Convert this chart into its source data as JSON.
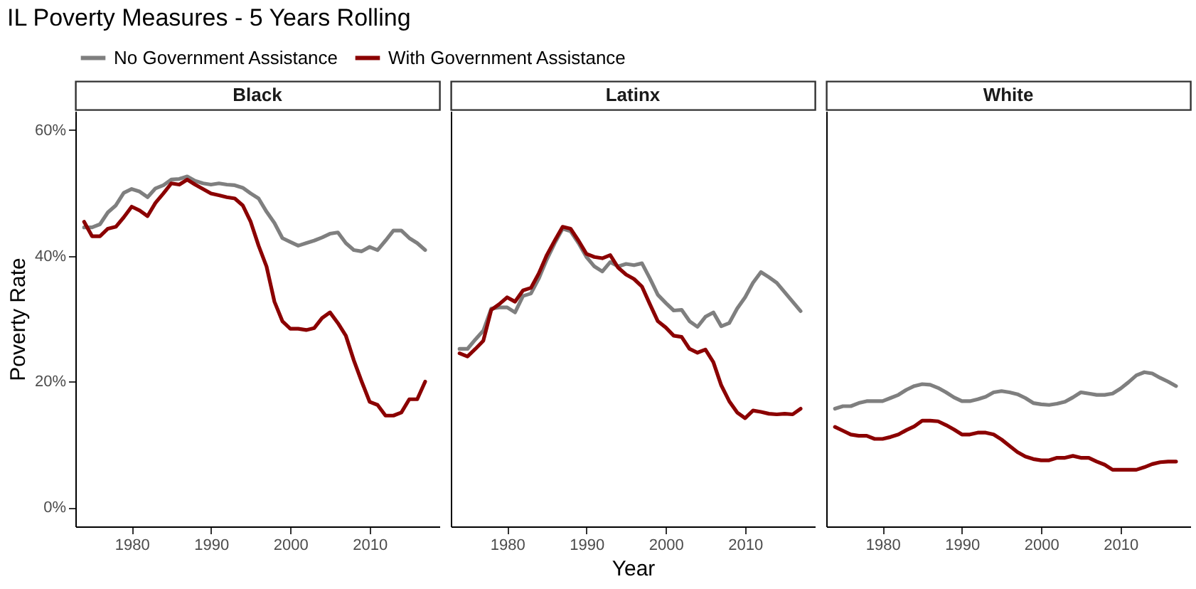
{
  "chart_data": [
    {
      "type": "line",
      "title": "IL Poverty Measures - 5 Years Rolling",
      "subtitle": "Black",
      "ylabel": "Poverty Rate",
      "legend": "top",
      "grid": false,
      "line_style": "solid",
      "marker": "none",
      "x": [
        1974,
        1975,
        1976,
        1977,
        1978,
        1979,
        1980,
        1981,
        1982,
        1983,
        1984,
        1985,
        1986,
        1987,
        1988,
        1989,
        1990,
        1991,
        1992,
        1993,
        1994,
        1995,
        1996,
        1997,
        1998,
        1999,
        2000,
        2001,
        2002,
        2003,
        2004,
        2005,
        2006,
        2007,
        2008,
        2009,
        2010,
        2011,
        2012,
        2013,
        2014,
        2015,
        2016,
        2017
      ],
      "xlim": [
        1972.9,
        2018.8
      ],
      "xticks": [
        1980,
        1990,
        2000,
        2010
      ],
      "ylim": [
        -3,
        63
      ],
      "yticks": [
        {
          "value": 0,
          "label": "0%"
        },
        {
          "value": 20,
          "label": "20%"
        },
        {
          "value": 40,
          "label": "40%"
        },
        {
          "value": 60,
          "label": "60%"
        }
      ],
      "series": [
        {
          "name": "No Government Assistance",
          "color": "#7f7f7f",
          "values": [
            44.5,
            44.5,
            45,
            46.9,
            48,
            50,
            50.6,
            50.2,
            49.3,
            50.7,
            51.2,
            52.1,
            52.2,
            52.6,
            51.9,
            51.5,
            51.3,
            51.5,
            51.3,
            51.2,
            50.8,
            49.9,
            49.1,
            47,
            45.2,
            42.8,
            42.2,
            41.6,
            42,
            42.4,
            42.9,
            43.5,
            43.7,
            42,
            40.9,
            40.7,
            41.4,
            40.9,
            42.4,
            44,
            44,
            42.8,
            42,
            40.9
          ]
        },
        {
          "name": "With Government Assistance",
          "color": "#8b0000",
          "values": [
            45.4,
            43.1,
            43.1,
            44.3,
            44.6,
            46.1,
            47.8,
            47.2,
            46.3,
            48.4,
            49.9,
            51.5,
            51.3,
            52.1,
            51.3,
            50.6,
            49.9,
            49.6,
            49.3,
            49.1,
            48,
            45.4,
            41.6,
            38.3,
            32.7,
            29.6,
            28.4,
            28.4,
            28.2,
            28.5,
            30.1,
            31,
            29.3,
            27.3,
            23.4,
            20,
            16.8,
            16.3,
            14.6,
            14.6,
            15.1,
            17.2,
            17.2,
            20
          ]
        }
      ]
    },
    {
      "type": "line",
      "subtitle": "Latinx",
      "xlabel": "Year",
      "tick_labels": "x",
      "grid": false,
      "line_style": "solid",
      "marker": "none",
      "ylim": [
        -3,
        63
      ],
      "x": [
        1974,
        1975,
        1976,
        1977,
        1978,
        1979,
        1980,
        1981,
        1982,
        1983,
        1984,
        1985,
        1986,
        1987,
        1988,
        1989,
        1990,
        1991,
        1992,
        1993,
        1994,
        1995,
        1996,
        1997,
        1998,
        1999,
        2000,
        2001,
        2002,
        2003,
        2004,
        2005,
        2006,
        2007,
        2008,
        2009,
        2010,
        2011,
        2012,
        2013,
        2014,
        2015,
        2016,
        2017
      ],
      "xlim": [
        1972.9,
        2018.8
      ],
      "xticks": [
        1980,
        1990,
        2000,
        2010
      ],
      "series": [
        {
          "color": "#7f7f7f",
          "values": [
            25.2,
            25.2,
            26.7,
            28.1,
            31.6,
            31.8,
            31.8,
            31,
            33.6,
            34,
            36.4,
            39.4,
            42,
            44.3,
            43.9,
            42,
            39.8,
            38.3,
            37.5,
            39,
            38.3,
            38.7,
            38.5,
            38.8,
            36.4,
            33.8,
            32.5,
            31.3,
            31.4,
            29.6,
            28.7,
            30.3,
            31,
            28.8,
            29.3,
            31.6,
            33.4,
            35.7,
            37.4,
            36.6,
            35.7,
            34.2,
            32.7,
            31.2
          ]
        },
        {
          "color": "#8b0000",
          "values": [
            24.5,
            24,
            25.2,
            26.5,
            31.4,
            32.3,
            33.4,
            32.7,
            34.5,
            34.9,
            37.2,
            40.1,
            42.4,
            44.6,
            44.3,
            42.4,
            40.3,
            39.8,
            39.6,
            40.1,
            38.1,
            37,
            36.3,
            35.1,
            32.3,
            29.6,
            28.6,
            27.3,
            27.1,
            25.2,
            24.6,
            25.1,
            23.1,
            19.4,
            16.9,
            15.1,
            14.2,
            15.4,
            15.2,
            14.9,
            14.8,
            14.9,
            14.8,
            15.7
          ]
        }
      ]
    },
    {
      "type": "line",
      "subtitle": "White",
      "tick_labels": "x",
      "grid": false,
      "line_style": "solid",
      "marker": "none",
      "ylim": [
        -3,
        63
      ],
      "x": [
        1974,
        1975,
        1976,
        1977,
        1978,
        1979,
        1980,
        1981,
        1982,
        1983,
        1984,
        1985,
        1986,
        1987,
        1988,
        1989,
        1990,
        1991,
        1992,
        1993,
        1994,
        1995,
        1996,
        1997,
        1998,
        1999,
        2000,
        2001,
        2002,
        2003,
        2004,
        2005,
        2006,
        2007,
        2008,
        2009,
        2010,
        2011,
        2012,
        2013,
        2014,
        2015,
        2016,
        2017
      ],
      "xlim": [
        1972.9,
        2018.8
      ],
      "xticks": [
        1980,
        1990,
        2000,
        2010
      ],
      "series": [
        {
          "color": "#7f7f7f",
          "values": [
            15.7,
            16.1,
            16.1,
            16.6,
            16.9,
            16.9,
            16.9,
            17.4,
            17.9,
            18.7,
            19.3,
            19.6,
            19.5,
            19,
            18.3,
            17.5,
            16.9,
            16.9,
            17.2,
            17.6,
            18.3,
            18.5,
            18.3,
            18,
            17.4,
            16.6,
            16.4,
            16.3,
            16.5,
            16.8,
            17.5,
            18.3,
            18.1,
            17.9,
            17.9,
            18.1,
            18.9,
            19.9,
            21,
            21.5,
            21.3,
            20.6,
            20,
            19.3
          ]
        },
        {
          "color": "#8b0000",
          "values": [
            12.8,
            12.2,
            11.6,
            11.4,
            11.4,
            10.9,
            10.9,
            11.2,
            11.6,
            12.3,
            12.9,
            13.8,
            13.8,
            13.7,
            13.1,
            12.4,
            11.6,
            11.6,
            11.9,
            11.9,
            11.6,
            10.8,
            9.8,
            8.8,
            8.1,
            7.7,
            7.5,
            7.5,
            7.9,
            7.9,
            8.2,
            7.9,
            7.9,
            7.3,
            6.8,
            6,
            6,
            6,
            6,
            6.4,
            6.9,
            7.2,
            7.3,
            7.3
          ]
        }
      ]
    }
  ]
}
